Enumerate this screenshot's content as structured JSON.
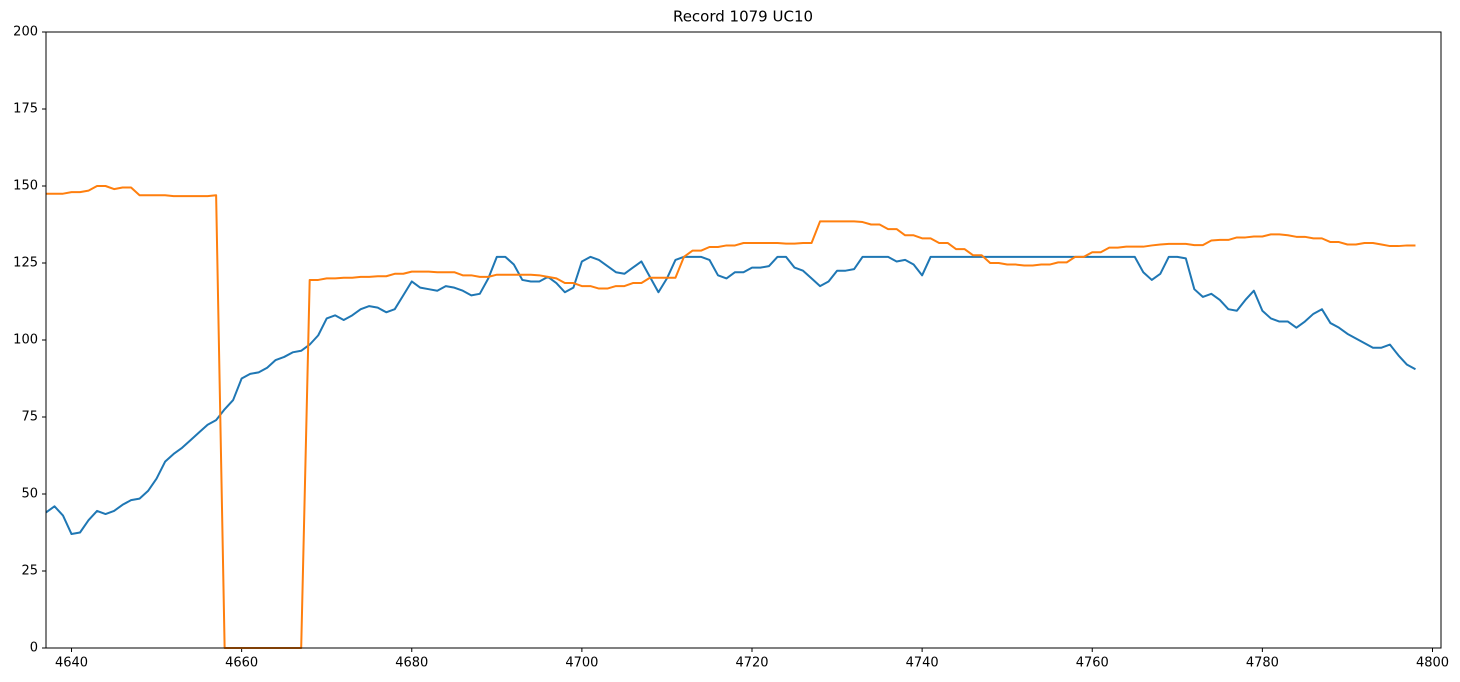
{
  "chart_data": {
    "type": "line",
    "title": "Record 1079 UC10",
    "x": [
      4637,
      4638,
      4639,
      4640,
      4641,
      4642,
      4643,
      4644,
      4645,
      4646,
      4647,
      4648,
      4649,
      4650,
      4651,
      4652,
      4653,
      4654,
      4655,
      4656,
      4657,
      4658,
      4659,
      4660,
      4661,
      4662,
      4663,
      4664,
      4665,
      4666,
      4667,
      4668,
      4669,
      4670,
      4671,
      4672,
      4673,
      4674,
      4675,
      4676,
      4677,
      4678,
      4679,
      4680,
      4681,
      4682,
      4683,
      4684,
      4685,
      4686,
      4687,
      4688,
      4689,
      4690,
      4691,
      4692,
      4693,
      4694,
      4695,
      4696,
      4697,
      4698,
      4699,
      4700,
      4701,
      4702,
      4703,
      4704,
      4705,
      4706,
      4707,
      4708,
      4709,
      4710,
      4711,
      4712,
      4713,
      4714,
      4715,
      4716,
      4717,
      4718,
      4719,
      4720,
      4721,
      4722,
      4723,
      4724,
      4725,
      4726,
      4727,
      4728,
      4729,
      4730,
      4731,
      4732,
      4733,
      4734,
      4735,
      4736,
      4737,
      4738,
      4739,
      4740,
      4741,
      4742,
      4743,
      4744,
      4745,
      4746,
      4747,
      4748,
      4749,
      4750,
      4751,
      4752,
      4753,
      4754,
      4755,
      4756,
      4757,
      4758,
      4759,
      4760,
      4761,
      4762,
      4763,
      4764,
      4765,
      4766,
      4767,
      4768,
      4769,
      4770,
      4771,
      4772,
      4773,
      4774,
      4775,
      4776,
      4777,
      4778,
      4779,
      4780,
      4781,
      4782,
      4783,
      4784,
      4785,
      4786,
      4787,
      4788,
      4789,
      4790,
      4791,
      4792,
      4793,
      4794,
      4795,
      4796,
      4797,
      4798
    ],
    "series": [
      {
        "color": "#1f77b4",
        "values": [
          44,
          46,
          43,
          37,
          37.5,
          41.5,
          44.5,
          43.5,
          44.5,
          46.5,
          48,
          48.5,
          51,
          55,
          60.5,
          63,
          65,
          67.5,
          70,
          72.5,
          74,
          77.5,
          80.5,
          87.5,
          89,
          89.5,
          91,
          93.5,
          94.5,
          96,
          96.5,
          98.5,
          101.5,
          107,
          108,
          106.5,
          108,
          110,
          111,
          110.5,
          109,
          110,
          114.5,
          119,
          117,
          116.5,
          116,
          117.5,
          117,
          116,
          114.5,
          115,
          120,
          127,
          127,
          124.5,
          119.5,
          119,
          119,
          120.5,
          118.5,
          115.5,
          117,
          125.5,
          127,
          126,
          124,
          122,
          121.5,
          123.5,
          125.5,
          120.5,
          115.5,
          120,
          126,
          127,
          127,
          127,
          126,
          121,
          120,
          122,
          122,
          123.5,
          123.5,
          124,
          127,
          127,
          123.5,
          122.5,
          120,
          117.5,
          119,
          122.5,
          122.5,
          123,
          127,
          127,
          127,
          127,
          125.5,
          126,
          124.5,
          121,
          127,
          127,
          127,
          127,
          127,
          127,
          127,
          127,
          127,
          127,
          127,
          127,
          127,
          127,
          127,
          127,
          127,
          127,
          127,
          127,
          127,
          127,
          127,
          127,
          127,
          122,
          119.5,
          121.5,
          127,
          127,
          126.5,
          116.5,
          114,
          115,
          113,
          110,
          109.5,
          113,
          116,
          109.5,
          107,
          106,
          106,
          104,
          106,
          108.5,
          110,
          105.5,
          104,
          102,
          100.5,
          99,
          97.5,
          97.5,
          98.5,
          95,
          92,
          90.5
        ]
      },
      {
        "color": "#ff7f0e",
        "values": [
          147.5,
          147.5,
          147.5,
          148,
          148,
          148.5,
          150,
          150,
          149,
          149.5,
          149.5,
          147,
          147,
          147,
          147,
          146.7,
          146.7,
          146.7,
          146.7,
          146.7,
          147,
          0,
          0,
          0,
          0,
          0,
          0,
          0,
          0,
          0,
          0,
          119.5,
          119.5,
          120,
          120,
          120.2,
          120.2,
          120.5,
          120.5,
          120.7,
          120.7,
          121.5,
          121.5,
          122.2,
          122.2,
          122.2,
          122,
          122,
          122,
          121,
          121,
          120.5,
          120.5,
          121.2,
          121.2,
          121.2,
          121.2,
          121.2,
          121,
          120.5,
          120,
          118.5,
          118.5,
          117.5,
          117.5,
          116.7,
          116.7,
          117.5,
          117.5,
          118.5,
          118.5,
          120.2,
          120.2,
          120.2,
          120.2,
          127,
          129,
          129,
          130.2,
          130.2,
          130.7,
          130.7,
          131.5,
          131.5,
          131.5,
          131.5,
          131.5,
          131.3,
          131.3,
          131.5,
          131.5,
          138.5,
          138.5,
          138.5,
          138.5,
          138.5,
          138.3,
          137.5,
          137.5,
          136,
          136,
          134,
          134,
          133,
          133,
          131.5,
          131.5,
          129.5,
          129.5,
          127.5,
          127.5,
          125,
          125,
          124.5,
          124.5,
          124.2,
          124.2,
          124.5,
          124.5,
          125.2,
          125.2,
          127,
          127,
          128.5,
          128.5,
          130,
          130,
          130.3,
          130.3,
          130.3,
          130.7,
          131,
          131.2,
          131.2,
          131.2,
          130.8,
          130.8,
          132.3,
          132.5,
          132.5,
          133.3,
          133.3,
          133.6,
          133.6,
          134.3,
          134.3,
          134,
          133.5,
          133.5,
          133,
          133,
          131.8,
          131.8,
          131,
          131,
          131.5,
          131.5,
          131,
          130.5,
          130.5,
          130.7,
          130.7
        ]
      }
    ],
    "xlim": [
      4637,
      4801
    ],
    "xticks": [
      4640,
      4660,
      4680,
      4700,
      4720,
      4740,
      4760,
      4780,
      4800
    ],
    "ylim": [
      0,
      200
    ],
    "yticks": [
      0,
      25,
      50,
      75,
      100,
      125,
      150,
      175,
      200
    ],
    "grid": false
  }
}
